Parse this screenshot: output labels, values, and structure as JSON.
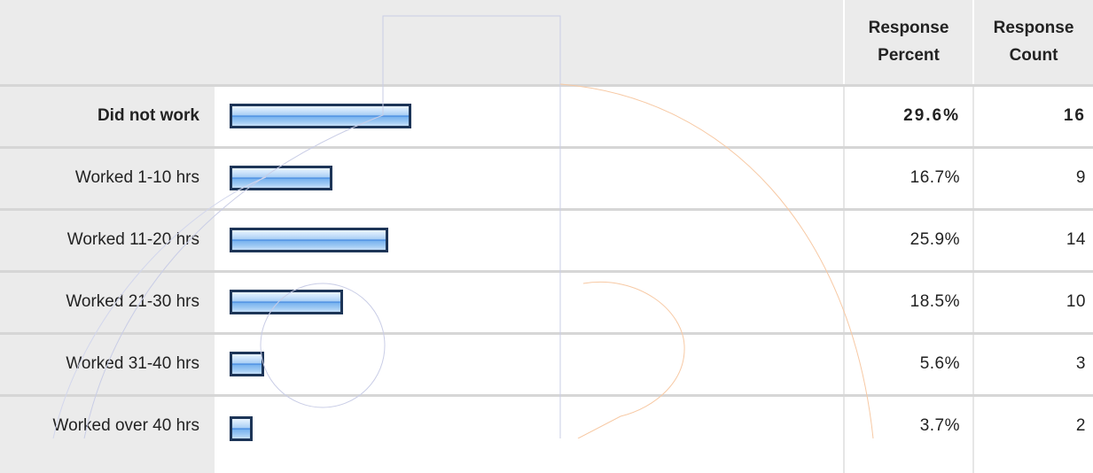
{
  "header": {
    "percent_line1": "Response",
    "percent_line2": "Percent",
    "count_line1": "Response",
    "count_line2": "Count"
  },
  "chart_data": {
    "type": "bar",
    "orientation": "horizontal",
    "categories": [
      "Did not work",
      "Worked 1-10 hrs",
      "Worked 11-20 hrs",
      "Worked 21-30 hrs",
      "Worked 31-40 hrs",
      "Worked over 40 hrs"
    ],
    "series": [
      {
        "name": "Response Percent",
        "values": [
          29.6,
          16.7,
          25.9,
          18.5,
          5.6,
          3.7
        ]
      },
      {
        "name": "Response Count",
        "values": [
          16,
          9,
          14,
          10,
          3,
          2
        ]
      }
    ],
    "percent_labels": [
      "29.6%",
      "16.7%",
      "25.9%",
      "18.5%",
      "5.6%",
      "3.7%"
    ],
    "count_labels": [
      "16",
      "9",
      "14",
      "10",
      "3",
      "2"
    ],
    "xlim": [
      0,
      100
    ],
    "bar_color": "#1d3557",
    "bar_fill": "#9ec9f3"
  },
  "rows": [
    {
      "label": "Did not work",
      "percent": "29.6%",
      "count": "16"
    },
    {
      "label": "Worked 1-10 hrs",
      "percent": "16.7%",
      "count": "9"
    },
    {
      "label": "Worked 11-20 hrs",
      "percent": "25.9%",
      "count": "14"
    },
    {
      "label": "Worked 21-30 hrs",
      "percent": "18.5%",
      "count": "10"
    },
    {
      "label": "Worked 31-40 hrs",
      "percent": "5.6%",
      "count": "3"
    },
    {
      "label": "Worked over 40 hrs",
      "percent": "3.7%",
      "count": "2"
    }
  ],
  "colors": {
    "header_bg": "#ebebeb",
    "row_border": "#d6d6d6",
    "watermark_blue": "#c9cde6",
    "watermark_orange": "#f7c9a4"
  }
}
